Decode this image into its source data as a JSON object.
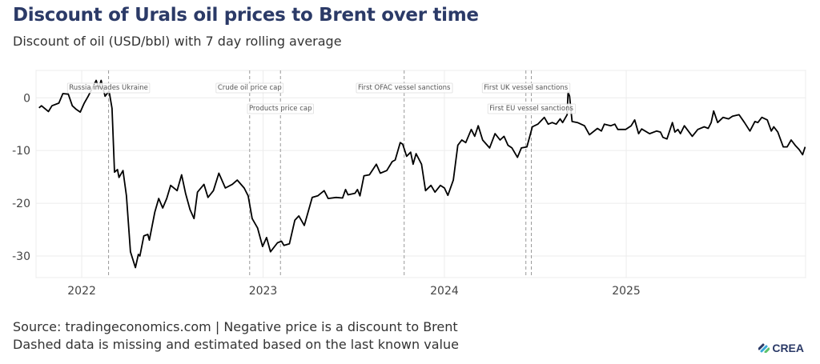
{
  "title": "Discount of Urals oil prices to Brent over time",
  "subtitle": "Discount of oil (USD/bbl) with 7 day rolling average",
  "footer": {
    "line1": "Source: tradingeconomics.com | Negative price is a discount to Brent",
    "line2": "Dashed data is missing and estimated based on the last known value"
  },
  "logo": {
    "text": "CREA",
    "colors": [
      "#2b3a67",
      "#3aa8d8",
      "#5cc26a"
    ]
  },
  "chart_data": {
    "type": "line",
    "title": "Discount of Urals oil prices to Brent over time",
    "subtitle": "Discount of oil (USD/bbl) with 7 day rolling average",
    "xlabel": "",
    "ylabel": "",
    "xlim": [
      "2021-10-01",
      "2025-12-28"
    ],
    "ylim": [
      -34.1,
      5.2
    ],
    "x_ticks": [
      {
        "date": "2022-01-01",
        "label": "2022"
      },
      {
        "date": "2023-01-01",
        "label": "2023"
      },
      {
        "date": "2024-01-01",
        "label": "2024"
      },
      {
        "date": "2025-01-01",
        "label": "2025"
      }
    ],
    "y_ticks": [
      0,
      -10,
      -20,
      -30
    ],
    "grid": true,
    "line_color": "#000000",
    "events": [
      {
        "date": "2022-02-24",
        "label": "Russia invades Ukraine",
        "row": 0
      },
      {
        "date": "2022-12-05",
        "label": "Crude oil price cap",
        "row": 0
      },
      {
        "date": "2023-02-05",
        "label": "Products price cap",
        "row": 1
      },
      {
        "date": "2023-10-12",
        "label": "First OFAC vessel sanctions",
        "row": 0
      },
      {
        "date": "2024-06-13",
        "label": "First UK vessel sanctions",
        "row": 0
      },
      {
        "date": "2024-06-24",
        "label": "First EU vessel sanctions",
        "row": 1
      }
    ],
    "series": [
      {
        "points": [
          [
            "2021-10-07",
            -1.9
          ],
          [
            "2021-10-12",
            -1.5
          ],
          [
            "2021-10-26",
            -2.6
          ],
          [
            "2021-11-02",
            -1.5
          ],
          [
            "2021-11-16",
            -1.0
          ],
          [
            "2021-11-24",
            0.8
          ],
          [
            "2021-12-05",
            0.7
          ],
          [
            "2021-12-13",
            -1.5
          ],
          [
            "2021-12-21",
            -2.2
          ],
          [
            "2021-12-29",
            -2.7
          ],
          [
            "2022-01-06",
            -1.0
          ],
          [
            "2022-01-14",
            0.3
          ],
          [
            "2022-01-30",
            3.3
          ],
          [
            "2022-02-04",
            1.8
          ],
          [
            "2022-02-09",
            3.3
          ],
          [
            "2022-02-17",
            0.3
          ],
          [
            "2022-02-25",
            1.3
          ],
          [
            "2022-03-03",
            -2.0
          ],
          [
            "2022-03-08",
            -14.1
          ],
          [
            "2022-03-14",
            -13.6
          ],
          [
            "2022-03-17",
            -15.1
          ],
          [
            "2022-03-25",
            -13.8
          ],
          [
            "2022-04-01",
            -18.6
          ],
          [
            "2022-04-09",
            -29.2
          ],
          [
            "2022-04-19",
            -32.2
          ],
          [
            "2022-04-25",
            -29.7
          ],
          [
            "2022-04-28",
            -30.0
          ],
          [
            "2022-05-06",
            -26.2
          ],
          [
            "2022-05-14",
            -25.9
          ],
          [
            "2022-05-17",
            -27.0
          ],
          [
            "2022-05-28",
            -21.7
          ],
          [
            "2022-06-05",
            -19.1
          ],
          [
            "2022-06-13",
            -20.9
          ],
          [
            "2022-06-21",
            -19.1
          ],
          [
            "2022-06-29",
            -16.6
          ],
          [
            "2022-07-12",
            -17.6
          ],
          [
            "2022-07-21",
            -14.6
          ],
          [
            "2022-07-29",
            -18.1
          ],
          [
            "2022-08-07",
            -21.2
          ],
          [
            "2022-08-15",
            -22.9
          ],
          [
            "2022-08-22",
            -17.9
          ],
          [
            "2022-09-04",
            -16.4
          ],
          [
            "2022-09-12",
            -18.9
          ],
          [
            "2022-09-23",
            -17.6
          ],
          [
            "2022-10-04",
            -14.3
          ],
          [
            "2022-10-17",
            -17.1
          ],
          [
            "2022-10-31",
            -16.4
          ],
          [
            "2022-11-10",
            -15.6
          ],
          [
            "2022-11-24",
            -17.1
          ],
          [
            "2022-12-02",
            -18.6
          ],
          [
            "2022-12-10",
            -22.9
          ],
          [
            "2022-12-21",
            -24.7
          ],
          [
            "2022-12-31",
            -28.2
          ],
          [
            "2023-01-08",
            -26.5
          ],
          [
            "2023-01-16",
            -29.2
          ],
          [
            "2023-01-30",
            -27.5
          ],
          [
            "2023-02-07",
            -27.2
          ],
          [
            "2023-02-12",
            -28.0
          ],
          [
            "2023-02-23",
            -27.7
          ],
          [
            "2023-03-06",
            -23.2
          ],
          [
            "2023-03-14",
            -22.4
          ],
          [
            "2023-03-25",
            -24.2
          ],
          [
            "2023-04-10",
            -18.9
          ],
          [
            "2023-04-21",
            -18.6
          ],
          [
            "2023-05-04",
            -17.6
          ],
          [
            "2023-05-12",
            -19.1
          ],
          [
            "2023-05-28",
            -18.9
          ],
          [
            "2023-06-10",
            -19.0
          ],
          [
            "2023-06-16",
            -17.4
          ],
          [
            "2023-06-21",
            -18.4
          ],
          [
            "2023-07-05",
            -18.1
          ],
          [
            "2023-07-10",
            -17.4
          ],
          [
            "2023-07-15",
            -18.6
          ],
          [
            "2023-07-23",
            -14.8
          ],
          [
            "2023-08-03",
            -14.6
          ],
          [
            "2023-08-17",
            -12.6
          ],
          [
            "2023-08-25",
            -14.3
          ],
          [
            "2023-09-07",
            -13.8
          ],
          [
            "2023-09-18",
            -12.1
          ],
          [
            "2023-09-24",
            -11.8
          ],
          [
            "2023-10-04",
            -8.5
          ],
          [
            "2023-10-09",
            -8.8
          ],
          [
            "2023-10-17",
            -11.1
          ],
          [
            "2023-10-25",
            -10.3
          ],
          [
            "2023-10-30",
            -12.6
          ],
          [
            "2023-11-05",
            -10.6
          ],
          [
            "2023-11-16",
            -12.6
          ],
          [
            "2023-11-24",
            -17.6
          ],
          [
            "2023-12-05",
            -16.6
          ],
          [
            "2023-12-13",
            -17.9
          ],
          [
            "2023-12-24",
            -16.6
          ],
          [
            "2024-01-01",
            -17.1
          ],
          [
            "2024-01-08",
            -18.5
          ],
          [
            "2024-01-19",
            -15.6
          ],
          [
            "2024-01-28",
            -9.0
          ],
          [
            "2024-02-05",
            -8.0
          ],
          [
            "2024-02-13",
            -8.5
          ],
          [
            "2024-02-24",
            -6.0
          ],
          [
            "2024-03-02",
            -7.3
          ],
          [
            "2024-03-09",
            -5.3
          ],
          [
            "2024-03-18",
            -8.0
          ],
          [
            "2024-04-01",
            -9.5
          ],
          [
            "2024-04-12",
            -6.8
          ],
          [
            "2024-04-22",
            -8.0
          ],
          [
            "2024-04-30",
            -7.3
          ],
          [
            "2024-05-08",
            -9.0
          ],
          [
            "2024-05-16",
            -9.5
          ],
          [
            "2024-05-27",
            -11.3
          ],
          [
            "2024-06-04",
            -9.5
          ],
          [
            "2024-06-15",
            -9.3
          ],
          [
            "2024-06-26",
            -5.5
          ],
          [
            "2024-07-07",
            -5.0
          ],
          [
            "2024-07-20",
            -3.7
          ],
          [
            "2024-07-28",
            -5.0
          ],
          [
            "2024-08-05",
            -4.7
          ],
          [
            "2024-08-13",
            -5.0
          ],
          [
            "2024-08-21",
            -4.0
          ],
          [
            "2024-08-26",
            -4.7
          ],
          [
            "2024-09-04",
            -3.2
          ],
          [
            "2024-09-06",
            1.1
          ],
          [
            "2024-09-09",
            0.3
          ],
          [
            "2024-09-14",
            -4.5
          ],
          [
            "2024-09-25",
            -4.7
          ],
          [
            "2024-10-09",
            -5.3
          ],
          [
            "2024-10-19",
            -7.0
          ],
          [
            "2024-11-04",
            -5.8
          ],
          [
            "2024-11-12",
            -6.3
          ],
          [
            "2024-11-18",
            -5.0
          ],
          [
            "2024-12-01",
            -5.3
          ],
          [
            "2024-12-09",
            -5.0
          ],
          [
            "2024-12-15",
            -6.0
          ],
          [
            "2024-12-31",
            -6.0
          ],
          [
            "2025-01-11",
            -5.3
          ],
          [
            "2025-01-18",
            -4.2
          ],
          [
            "2025-01-26",
            -6.8
          ],
          [
            "2025-02-01",
            -5.9
          ],
          [
            "2025-02-17",
            -6.8
          ],
          [
            "2025-03-03",
            -6.3
          ],
          [
            "2025-03-11",
            -6.5
          ],
          [
            "2025-03-16",
            -7.5
          ],
          [
            "2025-03-24",
            -7.8
          ],
          [
            "2025-04-04",
            -4.7
          ],
          [
            "2025-04-09",
            -6.5
          ],
          [
            "2025-04-15",
            -6.0
          ],
          [
            "2025-04-20",
            -6.8
          ],
          [
            "2025-04-28",
            -5.3
          ],
          [
            "2025-05-14",
            -7.3
          ],
          [
            "2025-05-25",
            -6.0
          ],
          [
            "2025-06-07",
            -5.5
          ],
          [
            "2025-06-15",
            -5.8
          ],
          [
            "2025-06-21",
            -4.7
          ],
          [
            "2025-06-26",
            -2.5
          ],
          [
            "2025-07-04",
            -4.7
          ],
          [
            "2025-07-15",
            -3.7
          ],
          [
            "2025-07-26",
            -4.0
          ],
          [
            "2025-08-03",
            -3.5
          ],
          [
            "2025-08-16",
            -3.2
          ],
          [
            "2025-08-27",
            -4.7
          ],
          [
            "2025-09-07",
            -6.3
          ],
          [
            "2025-09-17",
            -4.5
          ],
          [
            "2025-09-23",
            -4.7
          ],
          [
            "2025-10-01",
            -3.7
          ],
          [
            "2025-10-12",
            -4.2
          ],
          [
            "2025-10-20",
            -6.3
          ],
          [
            "2025-10-25",
            -5.5
          ],
          [
            "2025-11-02",
            -6.5
          ],
          [
            "2025-11-13",
            -9.3
          ],
          [
            "2025-11-21",
            -9.3
          ],
          [
            "2025-11-29",
            -8.0
          ],
          [
            "2025-12-07",
            -9.0
          ],
          [
            "2025-12-15",
            -9.8
          ],
          [
            "2025-12-22",
            -10.8
          ],
          [
            "2025-12-27",
            -9.3
          ]
        ]
      }
    ]
  }
}
